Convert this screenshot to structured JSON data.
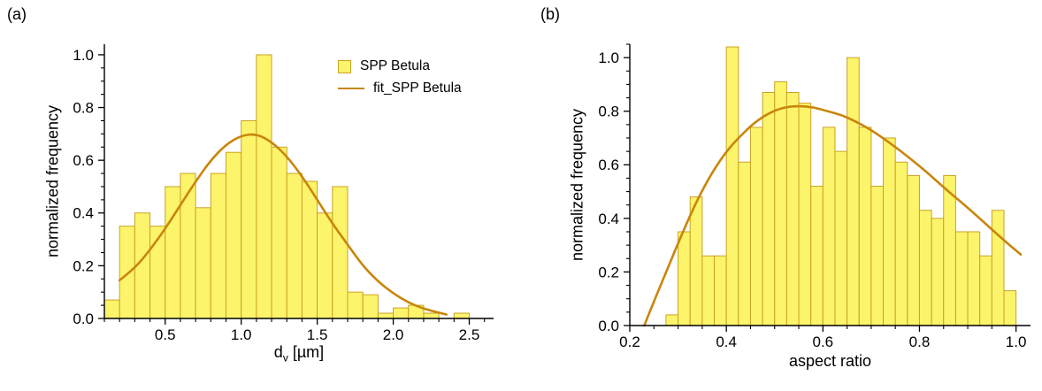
{
  "colors": {
    "bar_fill": "#FCF46B",
    "bar_edge": "#C9A227",
    "fit_line": "#C8860B",
    "axis": "#000000",
    "text": "#000000",
    "background": "#ffffff"
  },
  "panels": [
    {
      "label": "(a)",
      "ylabel": "normalized frequency",
      "xlabel_main": "d",
      "xlabel_sub": "v",
      "xlabel_unit": " [µm]",
      "legend": [
        "SPP Betula",
        "fit_SPP Betula"
      ]
    },
    {
      "label": "(b)",
      "ylabel": "normalized frequency",
      "xlabel": "aspect ratio"
    }
  ],
  "chart_data": [
    {
      "type": "bar",
      "subtype": "histogram-with-fit",
      "title": "",
      "xlabel": "d_v [µm]",
      "ylabel": "normalized frequency",
      "series_name": "SPP Betula",
      "fit_name": "fit_SPP Betula",
      "xlim": [
        0.1,
        2.66
      ],
      "ylim": [
        0,
        1.04
      ],
      "xticks": [
        0.5,
        1.0,
        1.5,
        2.0,
        2.5
      ],
      "xtick_labels": [
        "0.5",
        "1.0",
        "1.5",
        "2.0",
        "2.5"
      ],
      "yticks": [
        0,
        0.2,
        0.4,
        0.6,
        0.8,
        1.0
      ],
      "ytick_labels": [
        "0.0",
        "0.2",
        "0.4",
        "0.6",
        "0.8",
        "1.0"
      ],
      "xminor_step": 0.1,
      "yminor_step": 0.05,
      "bin_start": 0.1,
      "bin_width": 0.1,
      "values": [
        0.07,
        0.35,
        0.4,
        0.35,
        0.5,
        0.55,
        0.42,
        0.55,
        0.63,
        0.75,
        1.0,
        0.65,
        0.55,
        0.52,
        0.4,
        0.5,
        0.1,
        0.09,
        0.02,
        0.04,
        0.05,
        0.02,
        0.0,
        0.02
      ],
      "fit_curve": {
        "x": [
          0.2,
          0.3,
          0.4,
          0.5,
          0.6,
          0.7,
          0.8,
          0.9,
          1.0,
          1.1,
          1.2,
          1.3,
          1.4,
          1.5,
          1.6,
          1.7,
          1.8,
          1.9,
          2.0,
          2.1,
          2.2,
          2.3,
          2.35
        ],
        "y": [
          0.145,
          0.19,
          0.26,
          0.34,
          0.43,
          0.52,
          0.6,
          0.66,
          0.694,
          0.7,
          0.67,
          0.615,
          0.54,
          0.45,
          0.36,
          0.28,
          0.2,
          0.14,
          0.095,
          0.06,
          0.037,
          0.022,
          0.015
        ]
      },
      "legend_position": "upper-right-inside",
      "grid": false
    },
    {
      "type": "bar",
      "subtype": "histogram-with-fit",
      "title": "",
      "xlabel": "aspect ratio",
      "ylabel": "normalized frequency",
      "series_name": "SPP Betula",
      "fit_name": "fit_SPP Betula",
      "xlim": [
        0.2,
        1.03
      ],
      "ylim": [
        0,
        1.05
      ],
      "xticks": [
        0.2,
        0.4,
        0.6,
        0.8,
        1.0
      ],
      "xtick_labels": [
        "0.2",
        "0.4",
        "0.6",
        "0.8",
        "1.0"
      ],
      "yticks": [
        0,
        0.2,
        0.4,
        0.6,
        0.8,
        1.0
      ],
      "ytick_labels": [
        "0.0",
        "0.2",
        "0.4",
        "0.6",
        "0.8",
        "1.0"
      ],
      "xminor_step": 0.05,
      "yminor_step": 0.05,
      "bin_start": 0.275,
      "bin_width": 0.025,
      "values": [
        0.04,
        0.35,
        0.48,
        0.26,
        0.26,
        1.04,
        0.61,
        0.74,
        0.87,
        0.91,
        0.87,
        0.83,
        0.52,
        0.74,
        0.65,
        1.0,
        0.74,
        0.52,
        0.7,
        0.61,
        0.56,
        0.43,
        0.4,
        0.56,
        0.35,
        0.35,
        0.26,
        0.43,
        0.13
      ],
      "fit_curve": {
        "x": [
          0.23,
          0.25,
          0.28,
          0.31,
          0.34,
          0.37,
          0.4,
          0.43,
          0.46,
          0.49,
          0.52,
          0.55,
          0.58,
          0.61,
          0.64,
          0.67,
          0.7,
          0.74,
          0.78,
          0.82,
          0.86,
          0.9,
          0.94,
          0.98,
          1.01
        ],
        "y": [
          0.0,
          0.09,
          0.22,
          0.35,
          0.47,
          0.57,
          0.65,
          0.71,
          0.76,
          0.795,
          0.815,
          0.82,
          0.815,
          0.8,
          0.785,
          0.76,
          0.73,
          0.68,
          0.625,
          0.565,
          0.5,
          0.44,
          0.375,
          0.31,
          0.265
        ]
      },
      "legend_position": "none",
      "grid": false
    }
  ]
}
